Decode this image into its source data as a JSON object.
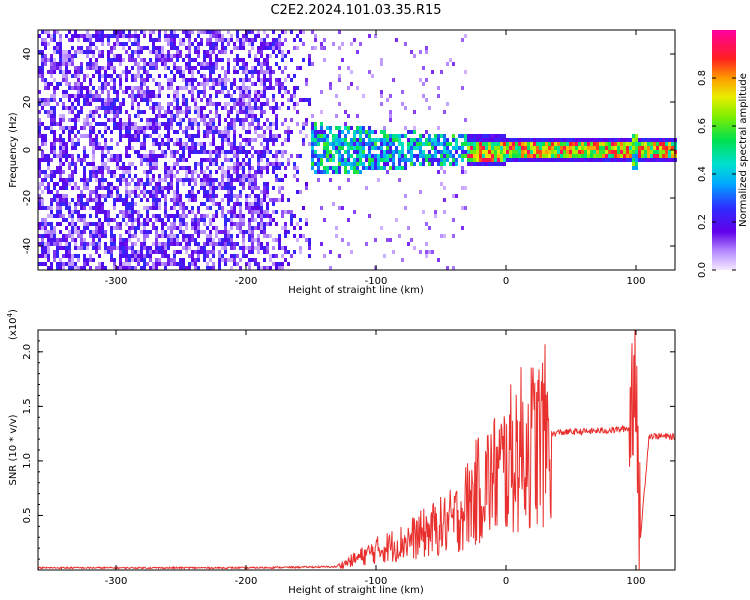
{
  "title": "C2E2.2024.101.03.35.R15",
  "chart_data": [
    {
      "type": "heatmap",
      "xlabel": "Height of straight line (km)",
      "ylabel": "Frequency (Hz)",
      "xlim": [
        -360,
        130
      ],
      "ylim": [
        -50,
        50
      ],
      "xticks": [
        -300,
        -200,
        -100,
        0,
        100
      ],
      "yticks": [
        -40,
        -20,
        0,
        20,
        40
      ],
      "grid": false,
      "description_regions": [
        {
          "x_range": [
            -360,
            -150
          ],
          "freq_range": [
            -50,
            50
          ],
          "amplitude": [
            0.05,
            0.25
          ]
        },
        {
          "x_range": [
            -150,
            -30
          ],
          "freq_range": [
            -8,
            10
          ],
          "amplitude": [
            0.2,
            0.6
          ]
        },
        {
          "x_range": [
            -30,
            130
          ],
          "freq_range": [
            0,
            3
          ],
          "amplitude": [
            0.5,
            1.0
          ]
        }
      ],
      "colorbar": {
        "label": "Normalized spectral amplitude",
        "range": [
          0.0,
          1.0
        ],
        "ticks": [
          0.0,
          0.2,
          0.4,
          0.6,
          0.8
        ]
      }
    },
    {
      "type": "line",
      "xlabel": "Height of straight line (km)",
      "ylabel": "SNR (10 * v/v)",
      "multiplier": "(x10",
      "multiplier_exp": "4",
      "multiplier_close": ")",
      "xlim": [
        -360,
        130
      ],
      "ylim": [
        0,
        2.2
      ],
      "xticks": [
        -300,
        -200,
        -100,
        0,
        100
      ],
      "yticks": [
        0.5,
        1.0,
        1.5,
        2.0
      ],
      "grid": false,
      "color": "#e8302e",
      "series": [
        {
          "x": [
            -360,
            -300,
            -200,
            -130,
            -120,
            -100,
            -80,
            -60,
            -40,
            -30,
            -20,
            -10,
            0,
            10,
            20,
            30,
            40,
            60,
            80,
            95,
            100,
            102,
            110,
            130
          ],
          "y": [
            0.02,
            0.02,
            0.02,
            0.03,
            0.08,
            0.18,
            0.25,
            0.35,
            0.45,
            0.6,
            0.75,
            0.85,
            0.95,
            1.1,
            1.15,
            1.22,
            1.26,
            1.27,
            1.28,
            1.3,
            2.1,
            0.1,
            1.23,
            1.22
          ]
        }
      ]
    }
  ]
}
